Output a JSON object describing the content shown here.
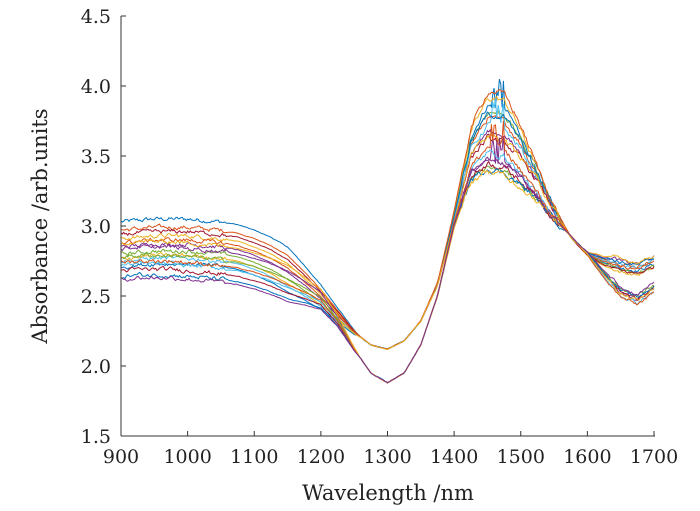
{
  "chart_data": {
    "type": "line",
    "title": "",
    "xlabel": "Wavelength /nm",
    "ylabel": "Absorbance /arb.units",
    "xlim": [
      900,
      1700
    ],
    "ylim": [
      1.5,
      4.5
    ],
    "xticks": [
      "900",
      "1000",
      "1100",
      "1200",
      "1300",
      "1400",
      "1500",
      "1600",
      "1700"
    ],
    "yticks": [
      "1.5",
      "2.0",
      "2.5",
      "3.0",
      "3.5",
      "4.0",
      "4.5"
    ],
    "grid": false,
    "legend": "none",
    "x": [
      900,
      925,
      950,
      975,
      1000,
      1025,
      1050,
      1075,
      1100,
      1125,
      1150,
      1175,
      1200,
      1225,
      1250,
      1275,
      1300,
      1325,
      1350,
      1375,
      1400,
      1425,
      1450,
      1475,
      1500,
      1525,
      1550,
      1575,
      1600,
      1625,
      1650,
      1675,
      1700
    ],
    "base_curves": {
      "A": [
        2.85,
        2.86,
        2.87,
        2.87,
        2.87,
        2.86,
        2.85,
        2.83,
        2.79,
        2.74,
        2.67,
        2.58,
        2.48,
        2.36,
        2.24,
        2.15,
        2.12,
        2.18,
        2.32,
        2.58,
        3.05,
        3.55,
        3.72,
        3.7,
        3.55,
        3.35,
        3.12,
        2.92,
        2.78,
        2.7,
        2.65,
        2.63,
        2.68
      ],
      "B": [
        2.74,
        2.75,
        2.75,
        2.75,
        2.74,
        2.73,
        2.72,
        2.7,
        2.67,
        2.63,
        2.58,
        2.53,
        2.47,
        2.32,
        2.12,
        1.95,
        1.88,
        1.95,
        2.15,
        2.5,
        3.0,
        3.35,
        3.45,
        3.42,
        3.32,
        3.2,
        3.05,
        2.93,
        2.8,
        2.65,
        2.52,
        2.47,
        2.55
      ]
    },
    "series": [
      {
        "group": "A",
        "early_offset": 0.18,
        "peak_offset": 0.15,
        "tail_offset": 0.05
      },
      {
        "group": "A",
        "early_offset": 0.12,
        "peak_offset": 0.05,
        "tail_offset": 0.08
      },
      {
        "group": "A",
        "early_offset": 0.06,
        "peak_offset": 0.2,
        "tail_offset": 0.02
      },
      {
        "group": "A",
        "early_offset": 0.0,
        "peak_offset": -0.05,
        "tail_offset": 0.1
      },
      {
        "group": "A",
        "early_offset": -0.05,
        "peak_offset": 0.1,
        "tail_offset": 0.04
      },
      {
        "group": "A",
        "early_offset": -0.1,
        "peak_offset": 0.0,
        "tail_offset": 0.07
      },
      {
        "group": "A",
        "early_offset": 0.09,
        "peak_offset": -0.1,
        "tail_offset": 0.03
      },
      {
        "group": "A",
        "early_offset": -0.14,
        "peak_offset": 0.08,
        "tail_offset": 0.09
      },
      {
        "group": "A",
        "early_offset": 0.03,
        "peak_offset": 0.25,
        "tail_offset": 0.06
      },
      {
        "group": "A",
        "early_offset": -0.08,
        "peak_offset": -0.08,
        "tail_offset": 0.11
      },
      {
        "group": "B",
        "early_offset": 0.1,
        "peak_offset": 0.05,
        "tail_offset": 0.0
      },
      {
        "group": "B",
        "early_offset": 0.04,
        "peak_offset": -0.03,
        "tail_offset": 0.03
      },
      {
        "group": "B",
        "early_offset": -0.02,
        "peak_offset": 0.08,
        "tail_offset": -0.02
      },
      {
        "group": "B",
        "early_offset": -0.06,
        "peak_offset": 0.0,
        "tail_offset": 0.01
      },
      {
        "group": "B",
        "early_offset": -0.1,
        "peak_offset": -0.04,
        "tail_offset": 0.02
      },
      {
        "group": "B",
        "early_offset": 0.0,
        "peak_offset": 0.12,
        "tail_offset": -0.03
      },
      {
        "group": "B",
        "early_offset": 0.14,
        "peak_offset": -0.06,
        "tail_offset": 0.0
      },
      {
        "group": "B",
        "early_offset": -0.12,
        "peak_offset": 0.04,
        "tail_offset": 0.04
      }
    ],
    "colors": [
      "#0072BD",
      "#D95319",
      "#EDB120",
      "#7E2F8E",
      "#77AC30",
      "#4DBEEE",
      "#A2142F"
    ]
  }
}
